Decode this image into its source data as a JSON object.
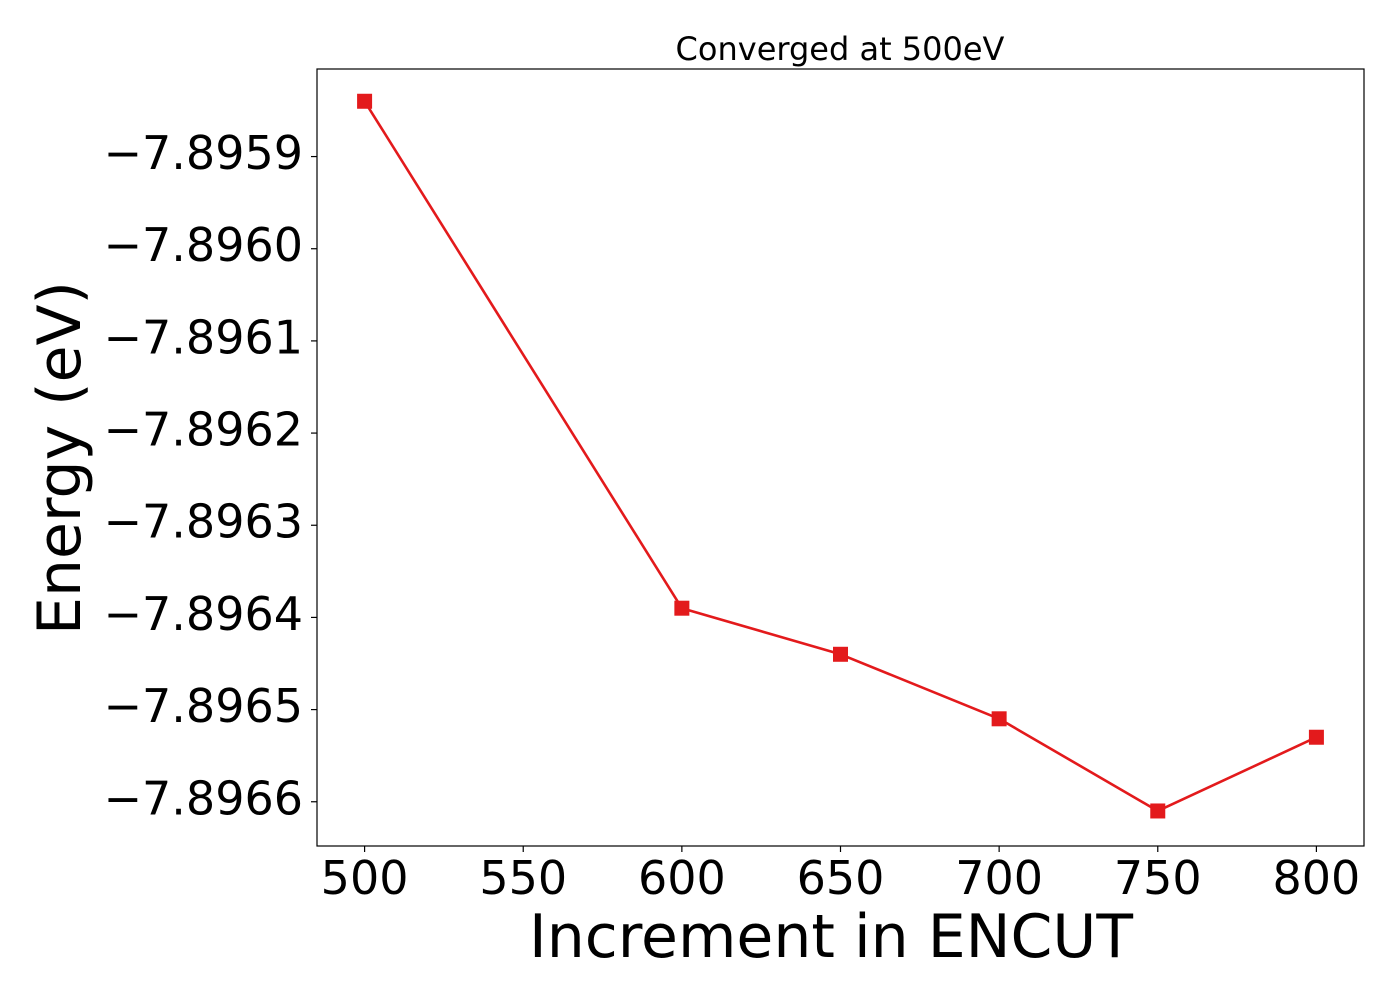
{
  "chart_data": {
    "type": "line",
    "title": "Converged at 500eV",
    "xlabel": "Increment in ENCUT",
    "ylabel": "Energy (eV)",
    "x": [
      500,
      600,
      650,
      700,
      750,
      800
    ],
    "series": [
      {
        "values": [
          -7.89584,
          -7.89639,
          -7.89644,
          -7.89651,
          -7.89661,
          -7.89653
        ],
        "color": "#e31a1c",
        "marker": "square"
      }
    ],
    "xticks": [
      500,
      550,
      600,
      650,
      700,
      750,
      800
    ],
    "xtick_labels": [
      "500",
      "550",
      "600",
      "650",
      "700",
      "750",
      "800"
    ],
    "yticks": [
      -7.8959,
      -7.896,
      -7.8961,
      -7.8962,
      -7.8963,
      -7.8964,
      -7.8965,
      -7.8966
    ],
    "ytick_labels": [
      "−7.8959",
      "−7.8960",
      "−7.8961",
      "−7.8962",
      "−7.8963",
      "−7.8964",
      "−7.8965",
      "−7.8966"
    ],
    "xlim": [
      485,
      815
    ],
    "ylim": [
      -7.896648,
      -7.895805
    ],
    "grid": false,
    "legend": "none"
  }
}
